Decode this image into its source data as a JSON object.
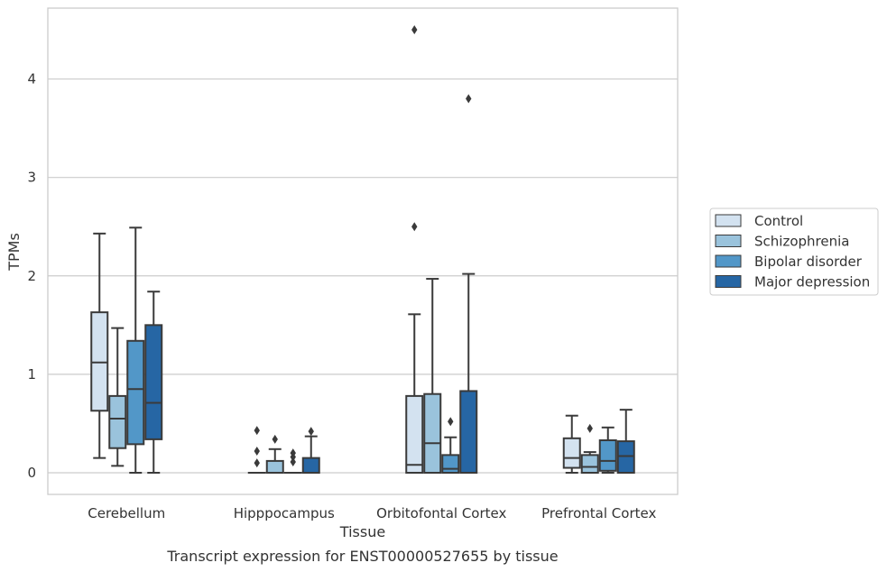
{
  "chart_data": {
    "type": "box",
    "title": "",
    "caption": "Transcript expression for ENST00000527655 by tissue",
    "xlabel": "Tissue",
    "ylabel": "TPMs",
    "ylim": [
      -0.22,
      4.72
    ],
    "yticks": [
      0,
      1,
      2,
      3,
      4
    ],
    "grid": "horizontal",
    "legend_position": "right",
    "categories": [
      "Cerebellum",
      "Hipppocampus",
      "Orbitofontal Cortex",
      "Prefrontal Cortex"
    ],
    "series": [
      {
        "name": "Control",
        "color": "#d3e2f0",
        "boxes": [
          {
            "whislo": 0.15,
            "q1": 0.63,
            "med": 1.12,
            "q3": 1.63,
            "whishi": 2.43,
            "fliers": []
          },
          {
            "whislo": 0.0,
            "q1": 0.0,
            "med": 0.0,
            "q3": 0.0,
            "whishi": 0.0,
            "fliers": [
              0.1,
              0.22,
              0.43
            ]
          },
          {
            "whislo": 0.0,
            "q1": 0.0,
            "med": 0.08,
            "q3": 0.78,
            "whishi": 1.61,
            "fliers": [
              2.5,
              4.5
            ]
          },
          {
            "whislo": 0.0,
            "q1": 0.05,
            "med": 0.15,
            "q3": 0.35,
            "whishi": 0.58,
            "fliers": []
          }
        ]
      },
      {
        "name": "Schizophrenia",
        "color": "#9ac3dc",
        "boxes": [
          {
            "whislo": 0.07,
            "q1": 0.25,
            "med": 0.55,
            "q3": 0.78,
            "whishi": 1.47,
            "fliers": []
          },
          {
            "whislo": 0.0,
            "q1": 0.0,
            "med": 0.0,
            "q3": 0.12,
            "whishi": 0.24,
            "fliers": [
              0.34
            ]
          },
          {
            "whislo": 0.0,
            "q1": 0.0,
            "med": 0.3,
            "q3": 0.8,
            "whishi": 1.97,
            "fliers": []
          },
          {
            "whislo": 0.0,
            "q1": 0.0,
            "med": 0.06,
            "q3": 0.18,
            "whishi": 0.21,
            "fliers": [
              0.45
            ]
          }
        ]
      },
      {
        "name": "Bipolar disorder",
        "color": "#5297c8",
        "boxes": [
          {
            "whislo": 0.0,
            "q1": 0.29,
            "med": 0.85,
            "q3": 1.34,
            "whishi": 2.49,
            "fliers": []
          },
          {
            "whislo": 0.0,
            "q1": 0.0,
            "med": 0.0,
            "q3": 0.0,
            "whishi": 0.0,
            "fliers": [
              0.11,
              0.16,
              0.2
            ]
          },
          {
            "whislo": 0.0,
            "q1": 0.0,
            "med": 0.04,
            "q3": 0.18,
            "whishi": 0.36,
            "fliers": [
              0.52
            ]
          },
          {
            "whislo": 0.0,
            "q1": 0.02,
            "med": 0.12,
            "q3": 0.33,
            "whishi": 0.46,
            "fliers": []
          }
        ]
      },
      {
        "name": "Major depression",
        "color": "#2666a4",
        "boxes": [
          {
            "whislo": 0.0,
            "q1": 0.34,
            "med": 0.71,
            "q3": 1.5,
            "whishi": 1.84,
            "fliers": []
          },
          {
            "whislo": 0.0,
            "q1": 0.0,
            "med": 0.0,
            "q3": 0.15,
            "whishi": 0.37,
            "fliers": [
              0.42
            ]
          },
          {
            "whislo": 0.0,
            "q1": 0.0,
            "med": 0.0,
            "q3": 0.83,
            "whishi": 2.02,
            "fliers": [
              3.8
            ]
          },
          {
            "whislo": 0.0,
            "q1": 0.0,
            "med": 0.17,
            "q3": 0.32,
            "whishi": 0.64,
            "fliers": []
          }
        ]
      }
    ],
    "colors": {
      "line": "#3a3a3a",
      "grid": "#cccccc",
      "frame": "#cccccc"
    }
  }
}
